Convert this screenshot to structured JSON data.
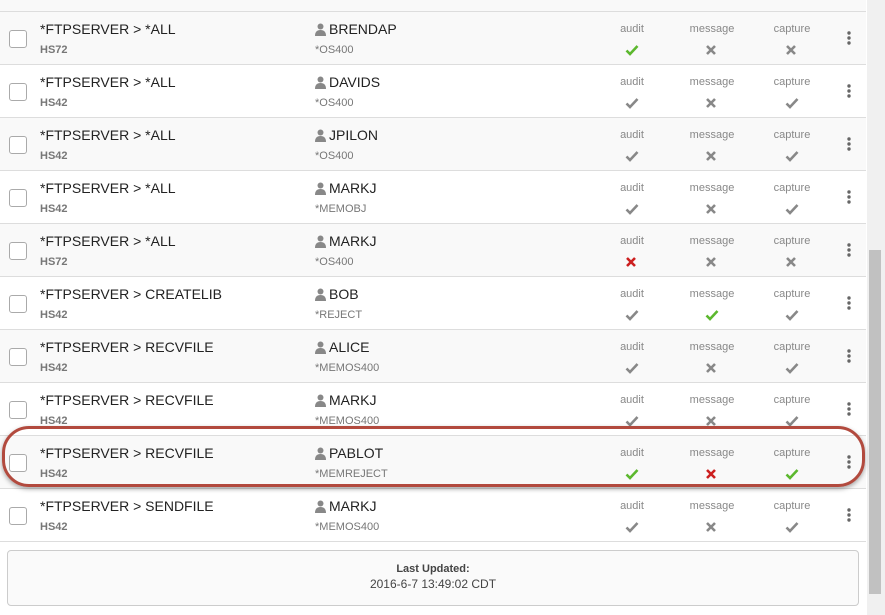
{
  "rows": [
    {
      "rule": "*FTPSERVER > *ALL",
      "system": "HS72",
      "user": "BRENDAP",
      "object": "*OS400",
      "highlighted": false,
      "checks": [
        {
          "label": "audit",
          "icon": "check",
          "color": "#5cb82e"
        },
        {
          "label": "message",
          "icon": "x",
          "color": "#888888"
        },
        {
          "label": "capture",
          "icon": "x",
          "color": "#888888"
        }
      ]
    },
    {
      "rule": "*FTPSERVER > *ALL",
      "system": "HS42",
      "user": "DAVIDS",
      "object": "*OS400",
      "highlighted": false,
      "checks": [
        {
          "label": "audit",
          "icon": "check",
          "color": "#888888"
        },
        {
          "label": "message",
          "icon": "x",
          "color": "#888888"
        },
        {
          "label": "capture",
          "icon": "check",
          "color": "#888888"
        }
      ]
    },
    {
      "rule": "*FTPSERVER > *ALL",
      "system": "HS42",
      "user": "JPILON",
      "object": "*OS400",
      "highlighted": false,
      "checks": [
        {
          "label": "audit",
          "icon": "check",
          "color": "#888888"
        },
        {
          "label": "message",
          "icon": "x",
          "color": "#888888"
        },
        {
          "label": "capture",
          "icon": "check",
          "color": "#888888"
        }
      ]
    },
    {
      "rule": "*FTPSERVER > *ALL",
      "system": "HS42",
      "user": "MARKJ",
      "object": "*MEMOBJ",
      "highlighted": false,
      "checks": [
        {
          "label": "audit",
          "icon": "check",
          "color": "#888888"
        },
        {
          "label": "message",
          "icon": "x",
          "color": "#888888"
        },
        {
          "label": "capture",
          "icon": "check",
          "color": "#888888"
        }
      ]
    },
    {
      "rule": "*FTPSERVER > *ALL",
      "system": "HS72",
      "user": "MARKJ",
      "object": "*OS400",
      "highlighted": false,
      "checks": [
        {
          "label": "audit",
          "icon": "x",
          "color": "#cc1f1f"
        },
        {
          "label": "message",
          "icon": "x",
          "color": "#888888"
        },
        {
          "label": "capture",
          "icon": "x",
          "color": "#888888"
        }
      ]
    },
    {
      "rule": "*FTPSERVER > CREATELIB",
      "system": "HS42",
      "user": "BOB",
      "object": "*REJECT",
      "highlighted": false,
      "checks": [
        {
          "label": "audit",
          "icon": "check",
          "color": "#888888"
        },
        {
          "label": "message",
          "icon": "check",
          "color": "#5cb82e"
        },
        {
          "label": "capture",
          "icon": "check",
          "color": "#888888"
        }
      ]
    },
    {
      "rule": "*FTPSERVER > RECVFILE",
      "system": "HS42",
      "user": "ALICE",
      "object": "*MEMOS400",
      "highlighted": false,
      "checks": [
        {
          "label": "audit",
          "icon": "check",
          "color": "#888888"
        },
        {
          "label": "message",
          "icon": "x",
          "color": "#888888"
        },
        {
          "label": "capture",
          "icon": "check",
          "color": "#888888"
        }
      ]
    },
    {
      "rule": "*FTPSERVER > RECVFILE",
      "system": "HS42",
      "user": "MARKJ",
      "object": "*MEMOS400",
      "highlighted": false,
      "checks": [
        {
          "label": "audit",
          "icon": "check",
          "color": "#888888"
        },
        {
          "label": "message",
          "icon": "x",
          "color": "#888888"
        },
        {
          "label": "capture",
          "icon": "check",
          "color": "#888888"
        }
      ]
    },
    {
      "rule": "*FTPSERVER > RECVFILE",
      "system": "HS42",
      "user": "PABLOT",
      "object": "*MEMREJECT",
      "highlighted": true,
      "checks": [
        {
          "label": "audit",
          "icon": "check",
          "color": "#5cb82e"
        },
        {
          "label": "message",
          "icon": "x",
          "color": "#cc1f1f"
        },
        {
          "label": "capture",
          "icon": "check",
          "color": "#5cb82e"
        }
      ]
    },
    {
      "rule": "*FTPSERVER > SENDFILE",
      "system": "HS42",
      "user": "MARKJ",
      "object": "*MEMOS400",
      "highlighted": false,
      "checks": [
        {
          "label": "audit",
          "icon": "check",
          "color": "#888888"
        },
        {
          "label": "message",
          "icon": "x",
          "color": "#888888"
        },
        {
          "label": "capture",
          "icon": "check",
          "color": "#888888"
        }
      ]
    }
  ],
  "footer": {
    "title": "Last Updated:",
    "timestamp": "2016-6-7 13:49:02 CDT"
  }
}
